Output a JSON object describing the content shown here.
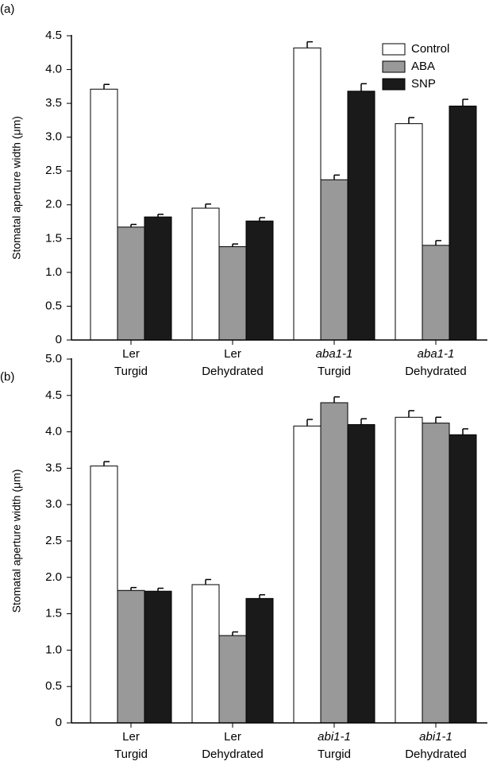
{
  "chart_data": [
    {
      "type": "bar",
      "label": "(a)",
      "ylabel": "Stomatal aperture width (μm)",
      "categories": [
        [
          "Ler",
          "Turgid"
        ],
        [
          "Ler",
          "Dehydrated"
        ],
        [
          "aba1-1",
          "Turgid"
        ],
        [
          "aba1-1",
          "Dehydrated"
        ]
      ],
      "series": [
        {
          "name": "Control",
          "color": "#ffffff",
          "values": [
            3.71,
            1.95,
            4.32,
            3.2
          ],
          "errors": [
            0.07,
            0.06,
            0.09,
            0.09
          ]
        },
        {
          "name": "ABA",
          "color": "#999999",
          "values": [
            1.67,
            1.38,
            2.37,
            1.4
          ],
          "errors": [
            0.04,
            0.04,
            0.07,
            0.07
          ]
        },
        {
          "name": "SNP",
          "color": "#1a1a1a",
          "values": [
            1.82,
            1.76,
            3.68,
            3.46
          ],
          "errors": [
            0.04,
            0.05,
            0.11,
            0.1
          ]
        }
      ],
      "ylim": [
        0,
        4.5
      ],
      "yticks": [
        0,
        0.5,
        {
          "value": 1,
          "label": "1.0"
        },
        1.5,
        {
          "value": 2,
          "label": "2.0"
        },
        2.5,
        {
          "value": 3,
          "label": "3.0"
        },
        3.5,
        {
          "value": 4,
          "label": "4.0"
        },
        4.5
      ],
      "legend": "upper right"
    },
    {
      "type": "bar",
      "label": "(b)",
      "ylabel": "Stomatal aperture width (μm)",
      "categories": [
        [
          "Ler",
          "Turgid"
        ],
        [
          "Ler",
          "Dehydrated"
        ],
        [
          "abi1-1",
          "Turgid"
        ],
        [
          "abi1-1",
          "Dehydrated"
        ]
      ],
      "series": [
        {
          "color": "#ffffff",
          "values": [
            3.53,
            1.9,
            4.08,
            4.2
          ],
          "errors": [
            0.06,
            0.07,
            0.09,
            0.09
          ]
        },
        {
          "color": "#999999",
          "values": [
            1.82,
            1.2,
            4.4,
            4.12
          ],
          "errors": [
            0.04,
            0.05,
            0.08,
            0.08
          ]
        },
        {
          "color": "#1a1a1a",
          "values": [
            1.81,
            1.71,
            4.1,
            3.96
          ],
          "errors": [
            0.04,
            0.05,
            0.08,
            0.08
          ]
        }
      ],
      "ylim": [
        0,
        5
      ],
      "yticks": [
        0,
        0.5,
        {
          "value": 1,
          "label": "1.0"
        },
        1.5,
        {
          "value": 2,
          "label": "2.0"
        },
        2.5,
        {
          "value": 3,
          "label": "3.0"
        },
        3.5,
        {
          "value": 4,
          "label": "4.0"
        },
        4.5,
        {
          "value": 5,
          "label": "5.0"
        }
      ]
    }
  ]
}
